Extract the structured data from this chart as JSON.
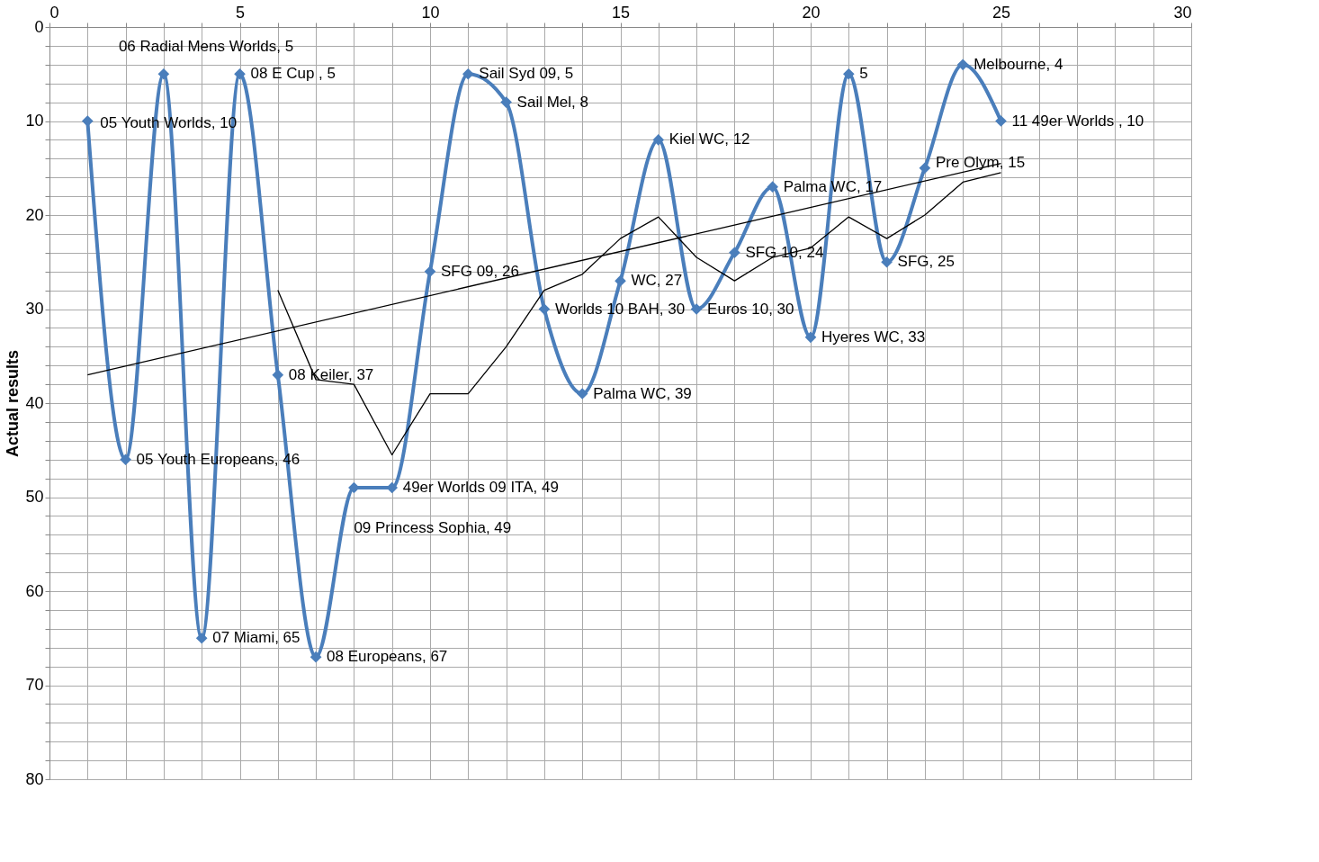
{
  "chart_data": {
    "type": "line",
    "ylabel": "Actual results",
    "xlim": [
      0,
      30
    ],
    "ylim": [
      80,
      0
    ],
    "grid": true,
    "xticks": [
      0,
      {
        "value": 1,
        "label": null
      },
      {
        "value": 2,
        "label": null
      },
      {
        "value": 3,
        "label": null
      },
      {
        "value": 4,
        "label": null
      },
      5,
      {
        "value": 6,
        "label": null
      },
      {
        "value": 7,
        "label": null
      },
      {
        "value": 8,
        "label": null
      },
      {
        "value": 9,
        "label": null
      },
      10,
      {
        "value": 11,
        "label": null
      },
      {
        "value": 12,
        "label": null
      },
      {
        "value": 13,
        "label": null
      },
      {
        "value": 14,
        "label": null
      },
      15,
      {
        "value": 16,
        "label": null
      },
      {
        "value": 17,
        "label": null
      },
      {
        "value": 18,
        "label": null
      },
      {
        "value": 19,
        "label": null
      },
      20,
      {
        "value": 21,
        "label": null
      },
      {
        "value": 22,
        "label": null
      },
      {
        "value": 23,
        "label": null
      },
      {
        "value": 24,
        "label": null
      },
      25,
      {
        "value": 26,
        "label": null
      },
      {
        "value": 27,
        "label": null
      },
      {
        "value": 28,
        "label": null
      },
      {
        "value": 29,
        "label": null
      },
      30
    ],
    "yticks": [
      0,
      {
        "value": 2,
        "label": null
      },
      {
        "value": 4,
        "label": null
      },
      {
        "value": 6,
        "label": null
      },
      {
        "value": 8,
        "label": null
      },
      10,
      {
        "value": 12,
        "label": null
      },
      {
        "value": 14,
        "label": null
      },
      {
        "value": 16,
        "label": null
      },
      {
        "value": 18,
        "label": null
      },
      20,
      {
        "value": 22,
        "label": null
      },
      {
        "value": 24,
        "label": null
      },
      {
        "value": 26,
        "label": null
      },
      {
        "value": 28,
        "label": null
      },
      30,
      {
        "value": 32,
        "label": null
      },
      {
        "value": 34,
        "label": null
      },
      {
        "value": 36,
        "label": null
      },
      {
        "value": 38,
        "label": null
      },
      40,
      {
        "value": 42,
        "label": null
      },
      {
        "value": 44,
        "label": null
      },
      {
        "value": 46,
        "label": null
      },
      {
        "value": 48,
        "label": null
      },
      50,
      {
        "value": 52,
        "label": null
      },
      {
        "value": 54,
        "label": null
      },
      {
        "value": 56,
        "label": null
      },
      {
        "value": 58,
        "label": null
      },
      60,
      {
        "value": 62,
        "label": null
      },
      {
        "value": 64,
        "label": null
      },
      {
        "value": 66,
        "label": null
      },
      {
        "value": 68,
        "label": null
      },
      70,
      {
        "value": 72,
        "label": null
      },
      {
        "value": 74,
        "label": null
      },
      {
        "value": 76,
        "label": null
      },
      {
        "value": 78,
        "label": null
      },
      80
    ],
    "series": [
      {
        "color": "#4a7ebb",
        "marker": "diamond",
        "x": [
          1,
          2,
          3,
          4,
          5,
          6,
          7,
          8,
          9,
          10,
          11,
          12,
          13,
          14,
          15,
          16,
          17,
          18,
          19,
          20,
          21,
          22,
          23,
          24,
          25
        ],
        "values": [
          10,
          46,
          5,
          65,
          5,
          37,
          67,
          49,
          49,
          26,
          5,
          8,
          30,
          39,
          27,
          12,
          30,
          24,
          17,
          33,
          5,
          25,
          15,
          4,
          10
        ],
        "value_labels": [
          "05 Youth Worlds, 10",
          "05 Youth Europeans, 46",
          "06 Radial Mens Worlds, 5",
          "07 Miami, 65",
          "08 E Cup , 5",
          "08 Keiler, 37",
          "08 Europeans, 67",
          "09 Princess Sophia, 49",
          "49er Worlds 09 ITA, 49",
          "SFG 09, 26",
          "Sail Syd 09, 5",
          "Sail Mel, 8",
          "Worlds 10 BAH, 30",
          "Palma WC, 39",
          "WC, 27",
          "Kiel WC, 12",
          "Euros 10, 30",
          "SFG 10, 24",
          "Palma WC, 17",
          "Hyeres WC, 33",
          "5",
          "SFG, 25",
          "Pre Olym, 15",
          "Melbourne, 4",
          "11 49er Worlds , 10"
        ]
      },
      {
        "type": "line",
        "color": "#000000",
        "marker": "none",
        "x": [
          1,
          25
        ],
        "values": [
          37,
          14.5
        ]
      },
      {
        "type": "line",
        "color": "#000000",
        "marker": "none",
        "x": [
          6,
          7,
          8,
          9,
          10,
          11,
          12,
          13,
          14,
          15,
          16,
          17,
          18,
          19,
          20,
          21,
          22,
          23,
          24,
          25
        ],
        "values": [
          28,
          37.5,
          38,
          45.5,
          39,
          39,
          34,
          28,
          26.3,
          22.5,
          20.2,
          24.5,
          27,
          24.5,
          23.5,
          20.2,
          22.5,
          20,
          16.5,
          15.5
        ]
      }
    ]
  }
}
